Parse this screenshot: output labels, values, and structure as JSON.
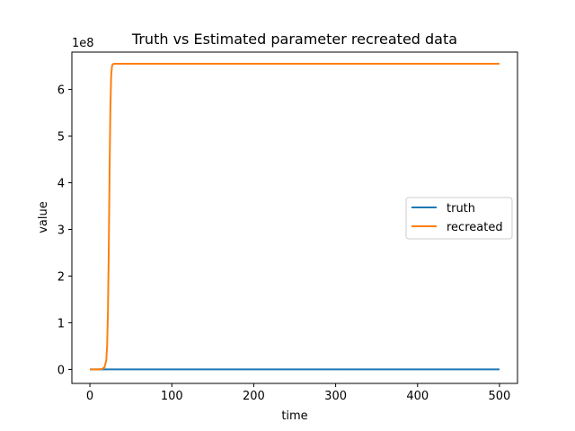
{
  "chart_data": {
    "type": "line",
    "title": "Truth vs Estimated parameter recreated data",
    "xlabel": "time",
    "ylabel": "value",
    "y_offset_label": "1e8",
    "y_scale": 100000000,
    "xlim": [
      -22,
      522
    ],
    "ylim": [
      -0.3,
      6.8
    ],
    "xticks": [
      0,
      100,
      200,
      300,
      400,
      500
    ],
    "yticks": [
      0,
      1,
      2,
      3,
      4,
      5,
      6
    ],
    "grid": false,
    "legend_position": "center-right",
    "series": [
      {
        "name": "truth",
        "color": "#1f77b4",
        "x": [
          0,
          100,
          200,
          300,
          400,
          500
        ],
        "y": [
          0,
          0,
          0,
          0,
          0,
          0
        ]
      },
      {
        "name": "recreated",
        "color": "#ff7f0e",
        "x": [
          0,
          10,
          15,
          18,
          20,
          21,
          22,
          23,
          24,
          25,
          26,
          27,
          28,
          30,
          50,
          100,
          200,
          300,
          400,
          500
        ],
        "y": [
          0,
          0,
          0.01,
          0.05,
          0.2,
          0.5,
          1.2,
          2.5,
          4.2,
          5.6,
          6.3,
          6.5,
          6.54,
          6.55,
          6.55,
          6.55,
          6.55,
          6.55,
          6.55,
          6.55
        ]
      }
    ]
  }
}
